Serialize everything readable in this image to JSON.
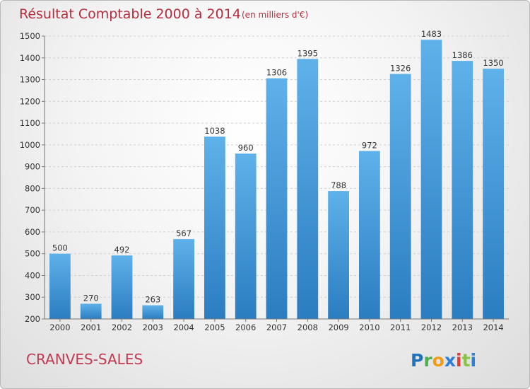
{
  "title": "Résultat Comptable 2000 à 2014",
  "subtitle": "(en milliers d'€)",
  "place": "CRANVES-SALES",
  "logo": {
    "letters": [
      "P",
      "r",
      "o",
      "x",
      "i",
      "t",
      "i"
    ],
    "colors": [
      "#1e73be",
      "#4caf50",
      "#f39c12",
      "#2d7fd6",
      "#e53935",
      "#8bc34a",
      "#2d7fd6"
    ]
  },
  "colors": {
    "bar_top": "#5fb1ea",
    "bar_bottom": "#2a7dc0",
    "title": "#b52d3c",
    "place": "#c23a50"
  },
  "chart_data": {
    "type": "bar",
    "title": "Résultat Comptable 2000 à 2014",
    "subtitle": "(en milliers d'€)",
    "categories": [
      "2000",
      "2001",
      "2002",
      "2003",
      "2004",
      "2005",
      "2006",
      "2007",
      "2008",
      "2009",
      "2010",
      "2011",
      "2012",
      "2013",
      "2014"
    ],
    "values": [
      500,
      270,
      492,
      263,
      567,
      1038,
      960,
      1306,
      1395,
      788,
      972,
      1326,
      1483,
      1386,
      1350
    ],
    "ylim": [
      200,
      1500
    ],
    "yticks": [
      200,
      300,
      400,
      500,
      600,
      700,
      800,
      900,
      1000,
      1100,
      1200,
      1300,
      1400,
      1500
    ],
    "grid": true,
    "xlabel": "",
    "ylabel": ""
  }
}
